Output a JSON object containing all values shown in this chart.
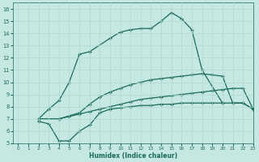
{
  "xlabel": "Humidex (Indice chaleur)",
  "xlim": [
    -0.5,
    23
  ],
  "ylim": [
    5,
    16.5
  ],
  "xticks": [
    0,
    1,
    2,
    3,
    4,
    5,
    6,
    7,
    8,
    9,
    10,
    11,
    12,
    13,
    14,
    15,
    16,
    17,
    18,
    19,
    20,
    21,
    22,
    23
  ],
  "yticks": [
    5,
    6,
    7,
    8,
    9,
    10,
    11,
    12,
    13,
    14,
    15,
    16
  ],
  "bg_color": "#c5e8e2",
  "line_color": "#1a6b5a",
  "grid_color": "#b0d8d0",
  "curve_arch_x": [
    2,
    3,
    4,
    5,
    6,
    7,
    9,
    10,
    11,
    12,
    13,
    14,
    15,
    16,
    17,
    18,
    20
  ],
  "curve_arch_y": [
    7.0,
    7.8,
    8.5,
    10.0,
    12.3,
    12.5,
    13.6,
    14.1,
    14.3,
    14.4,
    14.4,
    15.0,
    15.7,
    15.2,
    14.3,
    11.0,
    8.3
  ],
  "curve_diag_upper_x": [
    2,
    4,
    6,
    7,
    8,
    9,
    10,
    11,
    12,
    13,
    14,
    15,
    16,
    17,
    18,
    19,
    20,
    21,
    22,
    23
  ],
  "curve_diag_upper_y": [
    7.0,
    7.0,
    7.5,
    8.2,
    8.8,
    9.2,
    9.5,
    9.8,
    10.0,
    10.2,
    10.3,
    10.4,
    10.5,
    10.6,
    10.7,
    10.6,
    10.5,
    8.3,
    8.3,
    7.8
  ],
  "curve_diag_lower_x": [
    2,
    4,
    5,
    6,
    7,
    8,
    9,
    10,
    11,
    12,
    13,
    14,
    15,
    16,
    17,
    18,
    19,
    20,
    21,
    22,
    23
  ],
  "curve_diag_lower_y": [
    7.0,
    7.0,
    7.2,
    7.4,
    7.6,
    7.8,
    8.0,
    8.2,
    8.4,
    8.6,
    8.7,
    8.8,
    8.9,
    9.0,
    9.1,
    9.2,
    9.3,
    9.4,
    9.5,
    9.5,
    7.8
  ],
  "curve_bottom_x": [
    2,
    3,
    4,
    5,
    6,
    7,
    8,
    9,
    10,
    11,
    12,
    13,
    14,
    15,
    16,
    17,
    18,
    19,
    20,
    21,
    22,
    23
  ],
  "curve_bottom_y": [
    6.8,
    6.6,
    5.2,
    5.2,
    6.0,
    6.5,
    7.5,
    7.8,
    7.9,
    8.0,
    8.1,
    8.1,
    8.2,
    8.2,
    8.3,
    8.3,
    8.3,
    8.3,
    8.3,
    8.3,
    8.3,
    7.8
  ]
}
